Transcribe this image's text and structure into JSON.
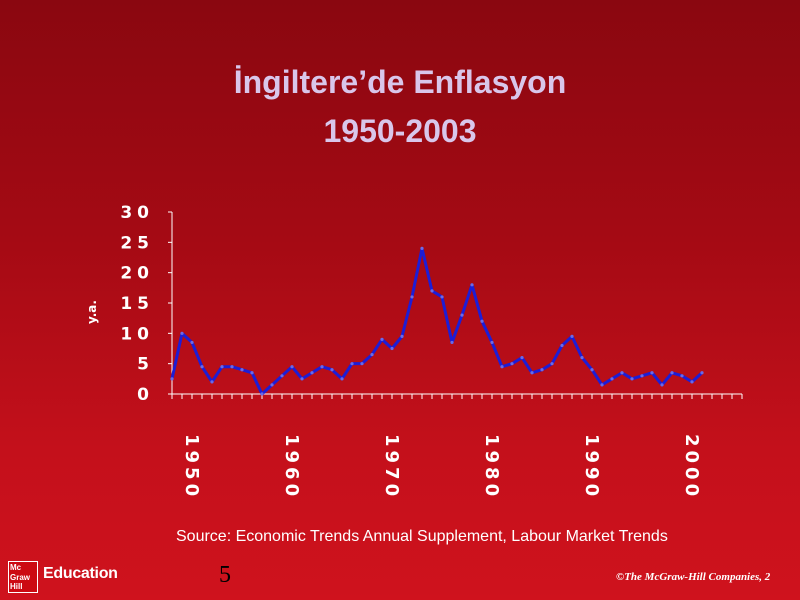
{
  "title_line1": "İngiltere’de Enflasyon",
  "title_line2": "1950-2003",
  "source": "Source: Economic Trends Annual Supplement, Labour Market Trends",
  "page_number": "5",
  "copyright": "©The McGraw-Hill Companies, 2",
  "logo": {
    "box_lines": [
      "Mc",
      "Graw",
      "Hill"
    ],
    "text": "Education"
  },
  "colors": {
    "line": "#1d1dd6",
    "axis": "#ffffff",
    "title": "#d9c6ea"
  },
  "chart_data": {
    "type": "line",
    "ylabel": "y.a.",
    "xlabel": "",
    "ylim": [
      0,
      30
    ],
    "yticks": [
      {
        "value": 0,
        "label": "0"
      },
      {
        "value": 5,
        "label": "5"
      },
      {
        "value": 10,
        "label": "10"
      },
      {
        "value": 15,
        "label": "15"
      },
      {
        "value": 20,
        "label": "20"
      },
      {
        "value": 25,
        "label": "25"
      },
      {
        "value": 30,
        "label": "30"
      }
    ],
    "xlim": [
      1950,
      2007
    ],
    "xticks": [
      {
        "value": 1952,
        "label": "1950"
      },
      {
        "value": 1962,
        "label": "1960"
      },
      {
        "value": 1972,
        "label": "1970"
      },
      {
        "value": 1982,
        "label": "1980"
      },
      {
        "value": 1992,
        "label": "1990"
      },
      {
        "value": 2002,
        "label": "2000"
      }
    ],
    "grid": false,
    "series": [
      {
        "x": [
          1950,
          1951,
          1952,
          1953,
          1954,
          1955,
          1956,
          1957,
          1958,
          1959,
          1960,
          1961,
          1962,
          1963,
          1964,
          1965,
          1966,
          1967,
          1968,
          1969,
          1970,
          1971,
          1972,
          1973,
          1974,
          1975,
          1976,
          1977,
          1978,
          1979,
          1980,
          1981,
          1982,
          1983,
          1984,
          1985,
          1986,
          1987,
          1988,
          1989,
          1990,
          1991,
          1992,
          1993,
          1994,
          1995,
          1996,
          1997,
          1998,
          1999,
          2000,
          2001,
          2002,
          2003
        ],
        "values": [
          2.5,
          10,
          8.5,
          4.5,
          2,
          4.5,
          4.5,
          4,
          3.5,
          0,
          1.5,
          3,
          4.5,
          2.5,
          3.5,
          4.5,
          4,
          2.5,
          5,
          5,
          6.5,
          9,
          7.5,
          9.5,
          16,
          24,
          17,
          16,
          8.5,
          13,
          18,
          12,
          8.5,
          4.5,
          5,
          6,
          3.5,
          4,
          5,
          8,
          9.5,
          6,
          4,
          1.5,
          2.5,
          3.5,
          2.5,
          3,
          3.5,
          1.5,
          3.5,
          3,
          2,
          3.5
        ]
      }
    ]
  }
}
